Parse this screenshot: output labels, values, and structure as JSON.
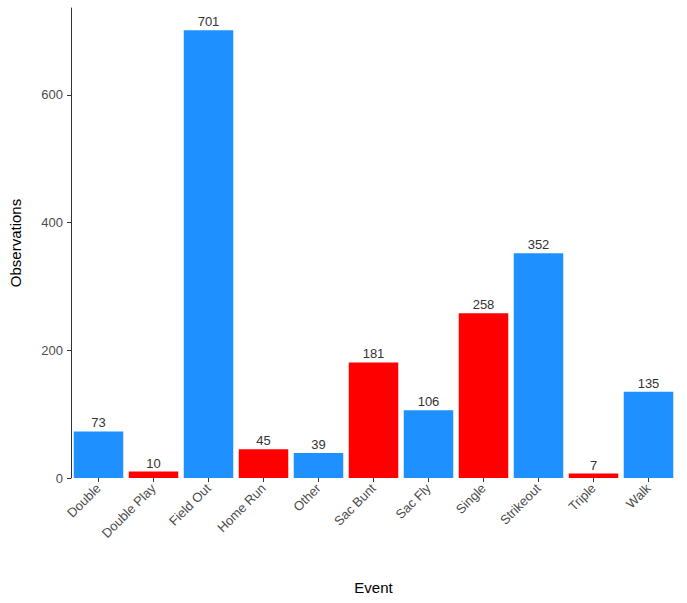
{
  "chart_data": {
    "type": "bar",
    "x_label": "Event",
    "y_label": "Observations",
    "categories": [
      "Double",
      "Double Play",
      "Field Out",
      "Home Run",
      "Other",
      "Sac Bunt",
      "Sac Fly",
      "Single",
      "Strikeout",
      "Triple",
      "Walk"
    ],
    "values": [
      73,
      10,
      701,
      45,
      39,
      181,
      106,
      258,
      352,
      7,
      135
    ],
    "colors": [
      "#1e90ff",
      "#ff0000",
      "#1e90ff",
      "#ff0000",
      "#1e90ff",
      "#ff0000",
      "#1e90ff",
      "#ff0000",
      "#1e90ff",
      "#ff0000",
      "#1e90ff"
    ],
    "ylim": [
      0,
      736
    ],
    "yticks": [
      0,
      200,
      400,
      600
    ],
    "grid": false,
    "data_labels": true
  }
}
